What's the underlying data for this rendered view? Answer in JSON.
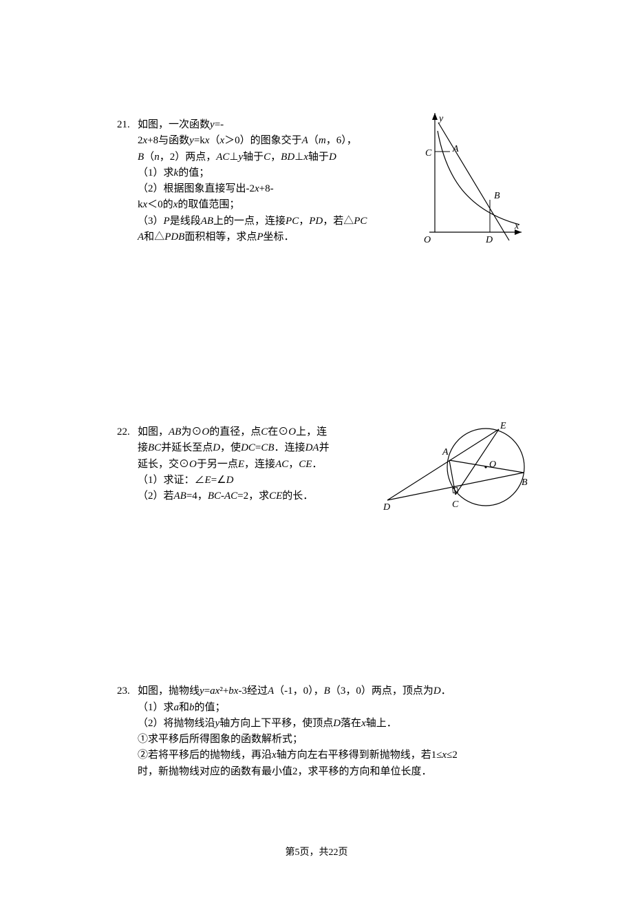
{
  "page": {
    "footer": "第5页，共22页"
  },
  "problems": [
    {
      "number": "21.",
      "lines": [
        "如图，一次函数<em>y</em>=-",
        "2<em>x</em>+8与函数<em>y</em>=k<em>x</em>（<em>x</em>＞0）的图象交于<em>A</em>（<em>m</em>，6），",
        "<em>B</em>（<em>n</em>，2）两点，<em>AC</em>⊥<em>y</em>轴于<em>C</em>，<em>BD</em>⊥<em>x</em>轴于<em>D</em>",
        "（1）求<em>k</em>的值；",
        "（2）根据图象直接写出-2<em>x</em>+8-",
        "k<em>x</em>＜0的<em>x</em>的取值范围；",
        "（3）<em>P</em>是线段<em>AB</em>上的一点，连接<em>PC</em>，<em>PD</em>，若△<em>PC</em>",
        "<em>A</em>和△<em>PDB</em>面积相等，求点<em>P</em>坐标．"
      ],
      "figure": {
        "type": "coordinate-plot",
        "axis_color": "#000000",
        "line_color": "#000000",
        "labels": {
          "O": "O",
          "C": "C",
          "A": "A",
          "B": "B",
          "D": "D",
          "x": "x",
          "y": "y"
        },
        "label_fontsize": 14,
        "label_fontstyle": "italic"
      }
    },
    {
      "number": "22.",
      "lines": [
        "如图，<em>AB</em>为⊙<em>O</em>的直径，点<em>C</em>在⊙<em>O</em>上，连",
        "接<em>BC</em>并延长至点<em>D</em>，使<em>DC</em>=<em>CB</em>．连接<em>DA</em>并",
        "延长，交⊙<em>O</em>于另一点<em>E</em>，连接<em>AC</em>，<em>CE</em>．",
        "（1）求证：∠<em>E</em>=∠<em>D</em>",
        "（2）若<em>AB</em>=4，<em>BC</em>-<em>AC</em>=2，求<em>CE</em>的长．"
      ],
      "figure": {
        "type": "circle-geometry",
        "line_color": "#000000",
        "labels": {
          "O": "O",
          "A": "A",
          "B": "B",
          "C": "C",
          "D": "D",
          "E": "E"
        },
        "label_fontsize": 14,
        "label_fontstyle": "italic"
      }
    },
    {
      "number": "23.",
      "lines": [
        "如图，抛物线<em>y</em>=<em>ax</em>²+<em>bx</em>-3经过<em>A</em>（-1，0），<em>B</em>（3，0）两点，顶点为<em>D</em>．",
        "（1）求<em>a</em>和<em>b</em>的值；",
        "（2）将抛物线沿<em>y</em>轴方向上下平移，使顶点<em>D</em>落在<em>x</em>轴上．",
        "①求平移后所得图象的函数解析式；",
        "②若将平移后的抛物线，再沿<em>x</em>轴方向左右平移得到新抛物线，若1≤<em>x</em>≤2",
        "时，新抛物线对应的函数有最小值2，求平移的方向和单位长度．"
      ]
    }
  ]
}
